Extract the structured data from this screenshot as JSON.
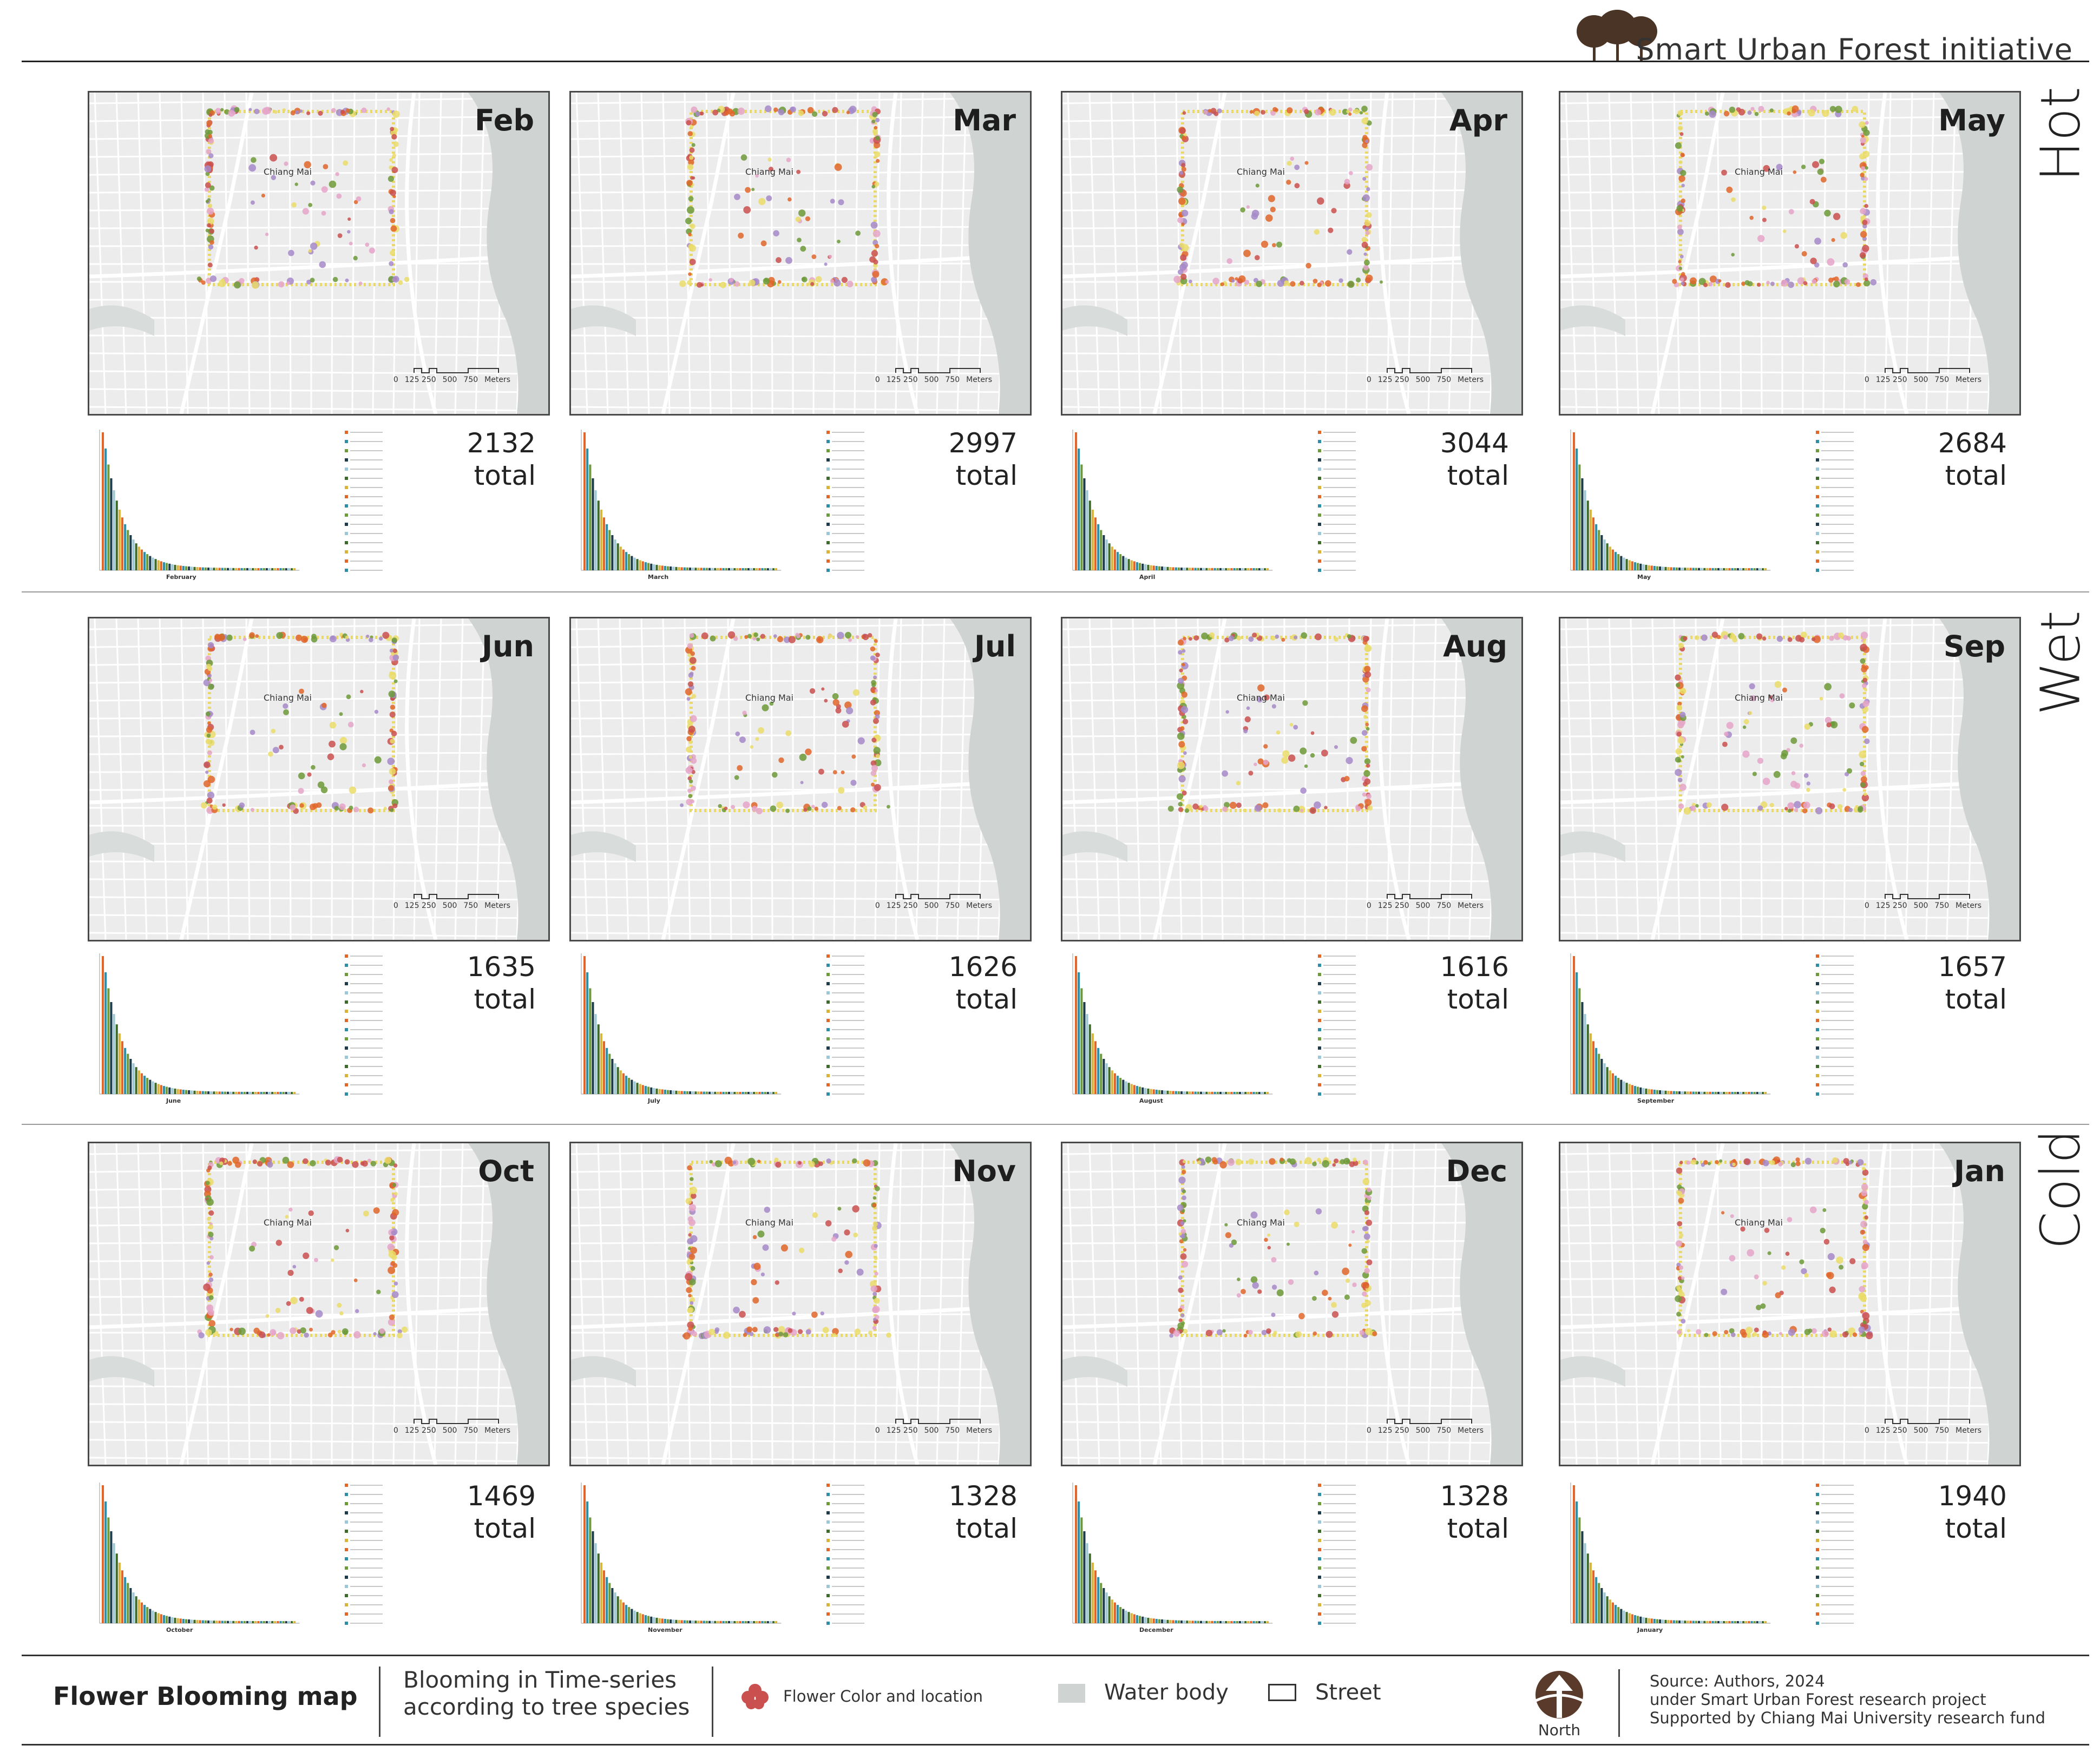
{
  "brand": {
    "text": "Smart Urban Forest initiative"
  },
  "seasons": [
    "Hot",
    "Wet",
    "Cold"
  ],
  "months": [
    {
      "label": "Feb",
      "total": "2132",
      "total_label": "total",
      "chart_title": "February"
    },
    {
      "label": "Mar",
      "total": "2997",
      "total_label": "total",
      "chart_title": "March"
    },
    {
      "label": "Apr",
      "total": "3044",
      "total_label": "total",
      "chart_title": "April"
    },
    {
      "label": "May",
      "total": "2684",
      "total_label": "total",
      "chart_title": "May"
    },
    {
      "label": "Jun",
      "total": "1635",
      "total_label": "total",
      "chart_title": "June"
    },
    {
      "label": "Jul",
      "total": "1626",
      "total_label": "total",
      "chart_title": "July"
    },
    {
      "label": "Aug",
      "total": "1616",
      "total_label": "total",
      "chart_title": "August"
    },
    {
      "label": "Sep",
      "total": "1657",
      "total_label": "total",
      "chart_title": "September"
    },
    {
      "label": "Oct",
      "total": "1469",
      "total_label": "total",
      "chart_title": "October"
    },
    {
      "label": "Nov",
      "total": "1328",
      "total_label": "total",
      "chart_title": "November"
    },
    {
      "label": "Dec",
      "total": "1328",
      "total_label": "total",
      "chart_title": "December"
    },
    {
      "label": "Jan",
      "total": "1940",
      "total_label": "total",
      "chart_title": "January"
    }
  ],
  "map_labels": {
    "city": "Chiang Mai",
    "scale_ticks": [
      "0",
      "125 250",
      "500",
      "750"
    ],
    "scale_unit": "Meters"
  },
  "colors": {
    "flower": "#c9504f",
    "water": "#cfd4d3",
    "orange": "#e0662a",
    "green": "#6d9a3a",
    "yellow": "#eadc6a",
    "purple": "#a68ac9",
    "pink": "#e5a5c9"
  },
  "footer": {
    "title": "Flower Blooming map",
    "subtitle_line1": "Blooming in Time-series",
    "subtitle_line2": "according to tree species",
    "legend_flower": "Flower Color and location",
    "legend_water": "Water body",
    "legend_street": "Street",
    "north": "North",
    "source_line1": "Source: Authors, 2024",
    "source_line2": "under Smart Urban Forest research project",
    "source_line3": "Supported by Chiang Mai University research fund"
  }
}
